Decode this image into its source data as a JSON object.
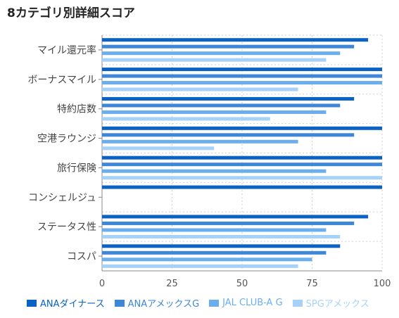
{
  "title": "8カテゴリ別詳細スコア",
  "chart_data": {
    "type": "bar",
    "orientation": "horizontal",
    "categories": [
      "マイル還元率",
      "ボーナスマイル",
      "特約店数",
      "空港ラウンジ",
      "旅行保険",
      "コンシェルジュ",
      "ステータス性",
      "コスパ"
    ],
    "series": [
      {
        "name": "ANAダイナース",
        "color": "#0a62c4",
        "values": [
          95,
          100,
          90,
          100,
          100,
          100,
          95,
          85
        ]
      },
      {
        "name": "ANAアメックスG",
        "color": "#3d86d8",
        "values": [
          90,
          100,
          85,
          90,
          100,
          0,
          90,
          80
        ]
      },
      {
        "name": "JAL CLUB-A G",
        "color": "#6aaeee",
        "values": [
          85,
          100,
          80,
          70,
          80,
          0,
          80,
          75
        ]
      },
      {
        "name": "SPGアメックス",
        "color": "#a6d2fa",
        "values": [
          80,
          70,
          60,
          40,
          100,
          0,
          85,
          70
        ]
      }
    ],
    "xlim": [
      0,
      100
    ],
    "xticks": [
      0,
      25,
      50,
      75,
      100
    ],
    "grid": true,
    "legend": "bottom"
  }
}
